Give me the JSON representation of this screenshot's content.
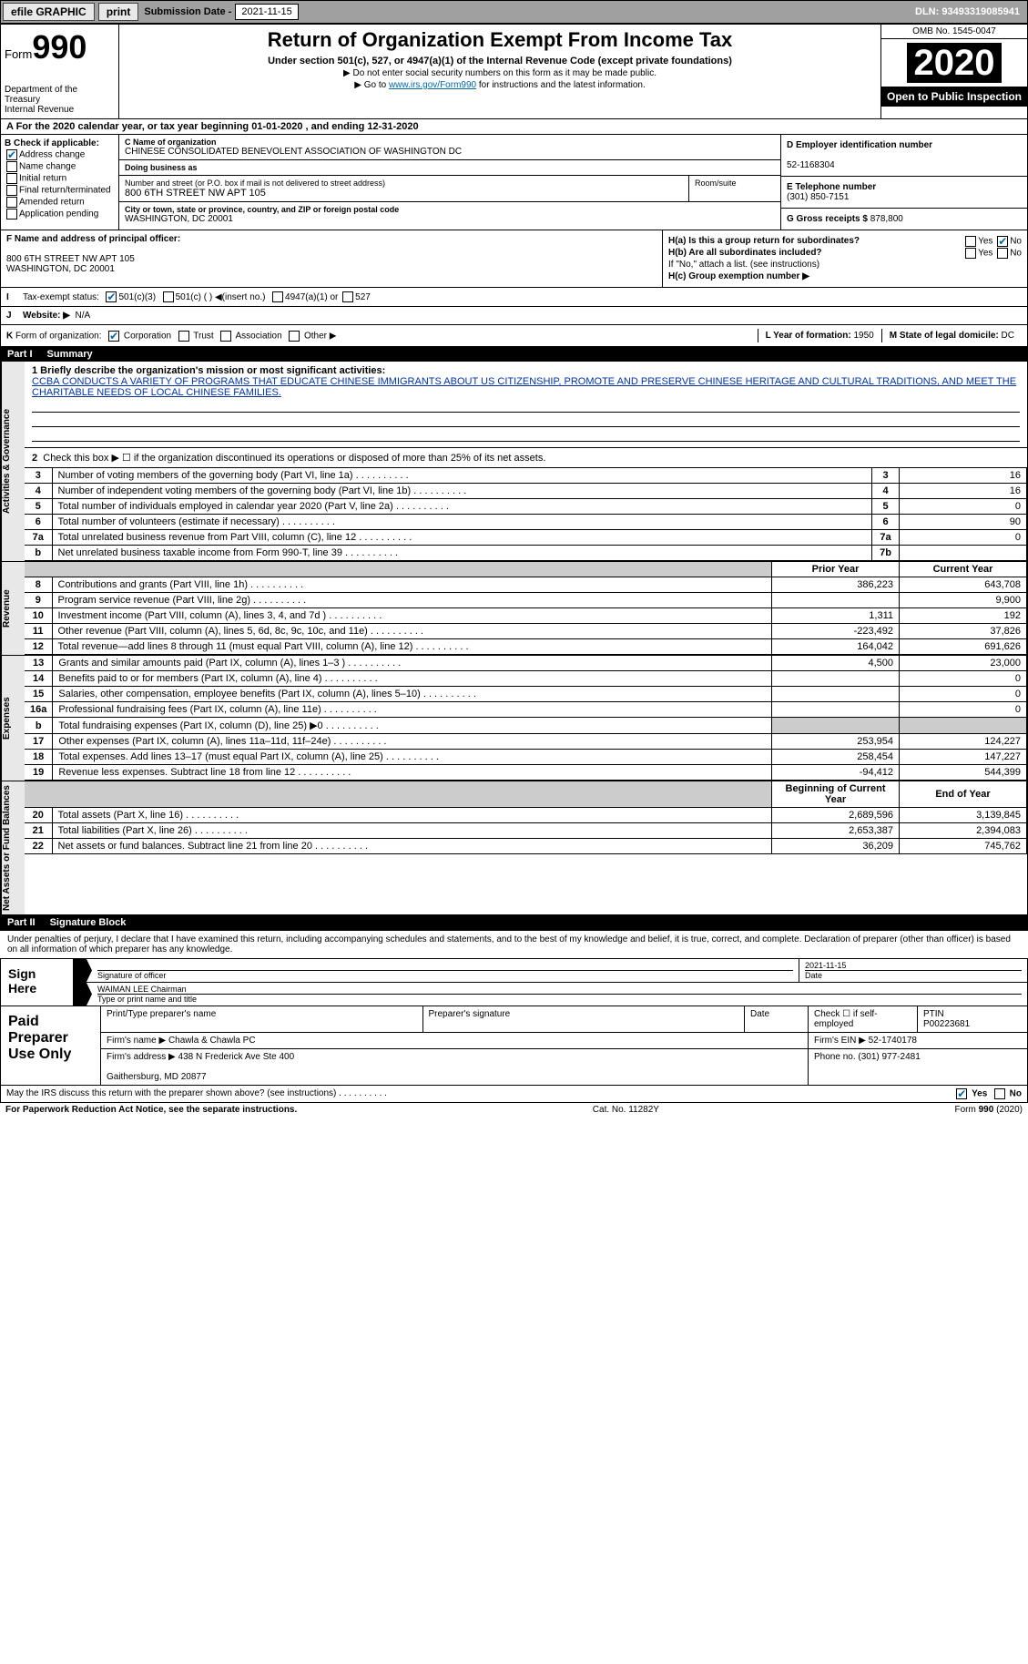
{
  "topbar": {
    "efile": "efile GRAPHIC",
    "print": "print",
    "sub_label": "Submission Date - ",
    "sub_date": "2021-11-15",
    "dln_label": "DLN: ",
    "dln": "93493319085941"
  },
  "header": {
    "form_word": "Form",
    "form_no": "990",
    "dept": "Department of the Treasury\nInternal Revenue",
    "title": "Return of Organization Exempt From Income Tax",
    "sub": "Under section 501(c), 527, or 4947(a)(1) of the Internal Revenue Code (except private foundations)",
    "note1": "▶ Do not enter social security numbers on this form as it may be made public.",
    "note2_pre": "▶ Go to ",
    "note2_link": "www.irs.gov/Form990",
    "note2_post": " for instructions and the latest information.",
    "omb": "OMB No. 1545-0047",
    "year": "2020",
    "open": "Open to Public Inspection"
  },
  "row_a": "A For the 2020 calendar year, or tax year beginning 01-01-2020   , and ending 12-31-2020",
  "block_b": {
    "label": "B Check if applicable:",
    "opts": [
      "Address change",
      "Name change",
      "Initial return",
      "Final return/terminated",
      "Amended return",
      "Application pending"
    ],
    "checked": [
      true,
      false,
      false,
      false,
      false,
      false
    ]
  },
  "block_c": {
    "name_lbl": "C Name of organization",
    "name": "CHINESE CONSOLIDATED BENEVOLENT ASSOCIATION OF WASHINGTON DC",
    "dba_lbl": "Doing business as",
    "dba": "",
    "addr_lbl": "Number and street (or P.O. box if mail is not delivered to street address)",
    "addr": "800 6TH STREET NW APT 105",
    "suite_lbl": "Room/suite",
    "city_lbl": "City or town, state or province, country, and ZIP or foreign postal code",
    "city": "WASHINGTON, DC  20001"
  },
  "block_d": {
    "lbl": "D Employer identification number",
    "val": "52-1168304"
  },
  "block_e": {
    "lbl": "E Telephone number",
    "val": "(301) 850-7151"
  },
  "block_g": {
    "lbl": "G Gross receipts $ ",
    "val": "878,800"
  },
  "block_f": {
    "lbl": "F  Name and address of principal officer:",
    "val": "800 6TH STREET NW APT 105\nWASHINGTON, DC  20001"
  },
  "block_h": {
    "a": "H(a)  Is this a group return for subordinates?",
    "a_yes": "Yes",
    "a_no": "No",
    "b": "H(b)  Are all subordinates included?",
    "b_note": "If \"No,\" attach a list. (see instructions)",
    "c": "H(c)  Group exemption number ▶"
  },
  "row_i": {
    "lbl": "I",
    "txt": "Tax-exempt status:",
    "opts": [
      "501(c)(3)",
      "501(c) (  ) ◀(insert no.)",
      "4947(a)(1) or",
      "527"
    ]
  },
  "row_j": {
    "lbl": "J",
    "txt": "Website: ▶",
    "val": "N/A"
  },
  "row_k": {
    "lbl": "K",
    "txt": "Form of organization:",
    "opts": [
      "Corporation",
      "Trust",
      "Association",
      "Other ▶"
    ],
    "l_lbl": "L Year of formation: ",
    "l_val": "1950",
    "m_lbl": "M State of legal domicile: ",
    "m_val": "DC"
  },
  "part1": {
    "pn": "Part I",
    "pt": "Summary"
  },
  "summary": {
    "line1_lbl": "1  Briefly describe the organization's mission or most significant activities:",
    "mission": "CCBA CONDUCTS A VARIETY OF PROGRAMS THAT EDUCATE CHINESE IMMIGRANTS ABOUT US CITIZENSHIP, PROMOTE AND PRESERVE CHINESE HERITAGE AND CULTURAL TRADITIONS, AND MEET THE CHARITABLE NEEDS OF LOCAL CHINESE FAMILIES.",
    "line2": "Check this box ▶ ☐  if the organization discontinued its operations or disposed of more than 25% of its net assets.",
    "vlabel_ag": "Activities & Governance",
    "vlabel_rev": "Revenue",
    "vlabel_exp": "Expenses",
    "vlabel_na": "Net Assets or Fund Balances",
    "rows_ag": [
      {
        "n": "3",
        "d": "Number of voting members of the governing body (Part VI, line 1a)",
        "b": "3",
        "v": "16"
      },
      {
        "n": "4",
        "d": "Number of independent voting members of the governing body (Part VI, line 1b)",
        "b": "4",
        "v": "16"
      },
      {
        "n": "5",
        "d": "Total number of individuals employed in calendar year 2020 (Part V, line 2a)",
        "b": "5",
        "v": "0"
      },
      {
        "n": "6",
        "d": "Total number of volunteers (estimate if necessary)",
        "b": "6",
        "v": "90"
      },
      {
        "n": "7a",
        "d": "Total unrelated business revenue from Part VIII, column (C), line 12",
        "b": "7a",
        "v": "0"
      },
      {
        "n": "b",
        "d": "Net unrelated business taxable income from Form 990-T, line 39",
        "b": "7b",
        "v": ""
      }
    ],
    "hdr_prior": "Prior Year",
    "hdr_curr": "Current Year",
    "rows_rev": [
      {
        "n": "8",
        "d": "Contributions and grants (Part VIII, line 1h)",
        "p": "386,223",
        "c": "643,708"
      },
      {
        "n": "9",
        "d": "Program service revenue (Part VIII, line 2g)",
        "p": "",
        "c": "9,900"
      },
      {
        "n": "10",
        "d": "Investment income (Part VIII, column (A), lines 3, 4, and 7d )",
        "p": "1,311",
        "c": "192"
      },
      {
        "n": "11",
        "d": "Other revenue (Part VIII, column (A), lines 5, 6d, 8c, 9c, 10c, and 11e)",
        "p": "-223,492",
        "c": "37,826"
      },
      {
        "n": "12",
        "d": "Total revenue—add lines 8 through 11 (must equal Part VIII, column (A), line 12)",
        "p": "164,042",
        "c": "691,626"
      }
    ],
    "rows_exp": [
      {
        "n": "13",
        "d": "Grants and similar amounts paid (Part IX, column (A), lines 1–3 )",
        "p": "4,500",
        "c": "23,000"
      },
      {
        "n": "14",
        "d": "Benefits paid to or for members (Part IX, column (A), line 4)",
        "p": "",
        "c": "0"
      },
      {
        "n": "15",
        "d": "Salaries, other compensation, employee benefits (Part IX, column (A), lines 5–10)",
        "p": "",
        "c": "0"
      },
      {
        "n": "16a",
        "d": "Professional fundraising fees (Part IX, column (A), line 11e)",
        "p": "",
        "c": "0"
      },
      {
        "n": "b",
        "d": "Total fundraising expenses (Part IX, column (D), line 25) ▶0",
        "p": "GREY",
        "c": "GREY"
      },
      {
        "n": "17",
        "d": "Other expenses (Part IX, column (A), lines 11a–11d, 11f–24e)",
        "p": "253,954",
        "c": "124,227"
      },
      {
        "n": "18",
        "d": "Total expenses. Add lines 13–17 (must equal Part IX, column (A), line 25)",
        "p": "258,454",
        "c": "147,227"
      },
      {
        "n": "19",
        "d": "Revenue less expenses. Subtract line 18 from line 12",
        "p": "-94,412",
        "c": "544,399"
      }
    ],
    "hdr_boy": "Beginning of Current Year",
    "hdr_eoy": "End of Year",
    "rows_na": [
      {
        "n": "20",
        "d": "Total assets (Part X, line 16)",
        "p": "2,689,596",
        "c": "3,139,845"
      },
      {
        "n": "21",
        "d": "Total liabilities (Part X, line 26)",
        "p": "2,653,387",
        "c": "2,394,083"
      },
      {
        "n": "22",
        "d": "Net assets or fund balances. Subtract line 21 from line 20",
        "p": "36,209",
        "c": "745,762"
      }
    ]
  },
  "part2": {
    "pn": "Part II",
    "pt": "Signature Block"
  },
  "sig": {
    "intro": "Under penalties of perjury, I declare that I have examined this return, including accompanying schedules and statements, and to the best of my knowledge and belief, it is true, correct, and complete. Declaration of preparer (other than officer) is based on all information of which preparer has any knowledge.",
    "sign_here": "Sign Here",
    "sig_officer": "Signature of officer",
    "date_lbl": "Date",
    "date": "2021-11-15",
    "name": "WAIMAN LEE Chairman",
    "name_lbl": "Type or print name and title"
  },
  "paid": {
    "title": "Paid Preparer Use Only",
    "h1": "Print/Type preparer's name",
    "h2": "Preparer's signature",
    "h3": "Date",
    "h4_pre": "Check ☐ if self-employed",
    "h5_lbl": "PTIN",
    "h5_val": "P00223681",
    "firm_lbl": "Firm's name    ▶ ",
    "firm": "Chawla & Chawla PC",
    "ein_lbl": "Firm's EIN ▶ ",
    "ein": "52-1740178",
    "addr_lbl": "Firm's address ▶ ",
    "addr": "438 N Frederick Ave Ste 400\n\nGaithersburg, MD  20877",
    "phone_lbl": "Phone no. ",
    "phone": "(301) 977-2481"
  },
  "discuss": {
    "txt": "May the IRS discuss this return with the preparer shown above? (see instructions)",
    "yes": "Yes",
    "no": "No"
  },
  "footer": {
    "pra": "For Paperwork Reduction Act Notice, see the separate instructions.",
    "cat": "Cat. No. 11282Y",
    "form": "Form 990 (2020)"
  }
}
